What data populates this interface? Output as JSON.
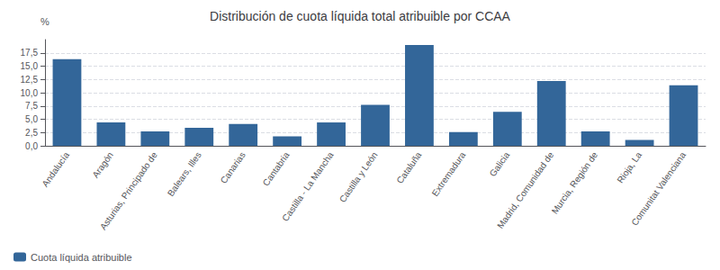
{
  "chart_data": {
    "type": "bar",
    "title": "Distribución de cuota líquida total atribuible por CCAA",
    "categories": [
      "Andalucía",
      "Aragón",
      "Asturias, Principado de",
      "Balears, Illes",
      "Canarias",
      "Cantabria",
      "Castilla - La Mancha",
      "Castilla y León",
      "Cataluña",
      "Extremadura",
      "Galicia",
      "Madrid, Comunidad de",
      "Murcia, Región de",
      "Rioja, La",
      "Comunitat Valenciana"
    ],
    "series": [
      {
        "name": "Cuota líquida atribuible",
        "color": "#336699",
        "values": [
          16.3,
          4.4,
          2.7,
          3.4,
          4.1,
          1.8,
          4.4,
          7.7,
          19.0,
          2.6,
          6.4,
          12.2,
          2.7,
          1.1,
          11.4
        ]
      }
    ],
    "ylabel": "%",
    "ylim": [
      0,
      20
    ],
    "yticks": [
      {
        "value": 0.0,
        "label": "0,0"
      },
      {
        "value": 2.5,
        "label": "2,5"
      },
      {
        "value": 5.0,
        "label": "5,0"
      },
      {
        "value": 7.5,
        "label": "7,5"
      },
      {
        "value": 10.0,
        "label": "10,0"
      },
      {
        "value": 12.5,
        "label": "12,5"
      },
      {
        "value": 15.0,
        "label": "15,0"
      },
      {
        "value": 17.5,
        "label": "17,5"
      }
    ],
    "grid": true,
    "legend": "lower left"
  }
}
